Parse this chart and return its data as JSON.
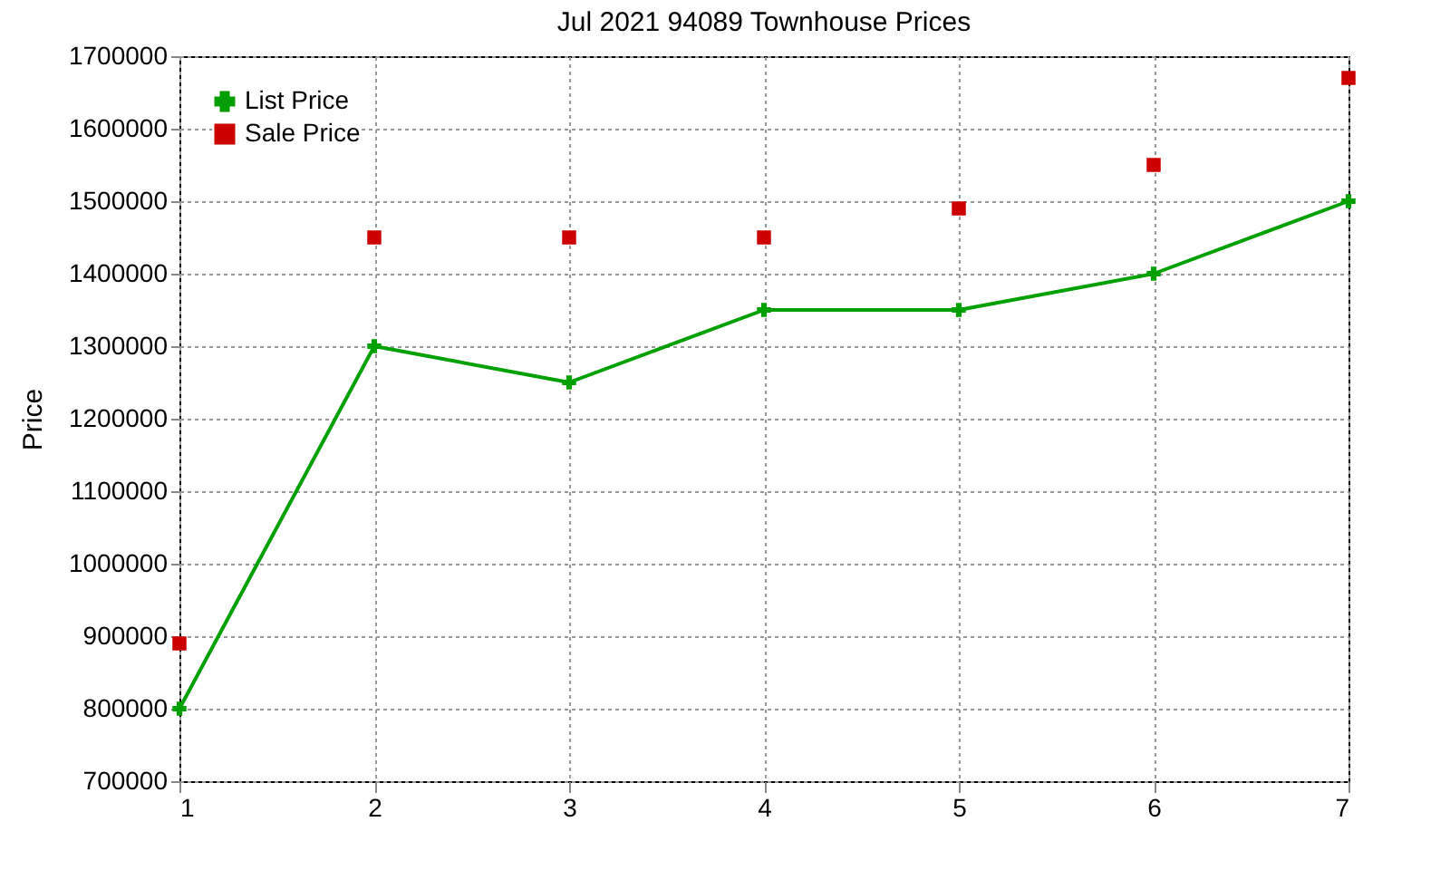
{
  "chart_data": {
    "type": "line",
    "title": "Jul 2021 94089 Townhouse Prices",
    "ylabel": "Price",
    "x": [
      1,
      2,
      3,
      4,
      5,
      6,
      7
    ],
    "xlim": [
      1,
      7
    ],
    "xticks": [
      1,
      2,
      3,
      4,
      5,
      6,
      7
    ],
    "ylim": [
      700000,
      1700000
    ],
    "yticks": [
      700000,
      800000,
      900000,
      1000000,
      1100000,
      1200000,
      1300000,
      1400000,
      1500000,
      1600000,
      1700000
    ],
    "grid": true,
    "legend": "top left",
    "line_style": "solid",
    "series": [
      {
        "name": "List Price",
        "marker": "cross",
        "color": "#00a000",
        "values": [
          800000,
          1300000,
          1250000,
          1350000,
          1350000,
          1400000,
          1500000
        ]
      },
      {
        "name": "Sale Price",
        "type": "scatter",
        "marker": "square",
        "color": "#cc0000",
        "values": [
          890000,
          1450000,
          1450000,
          1450000,
          1490000,
          1550000,
          1670000
        ]
      }
    ]
  }
}
